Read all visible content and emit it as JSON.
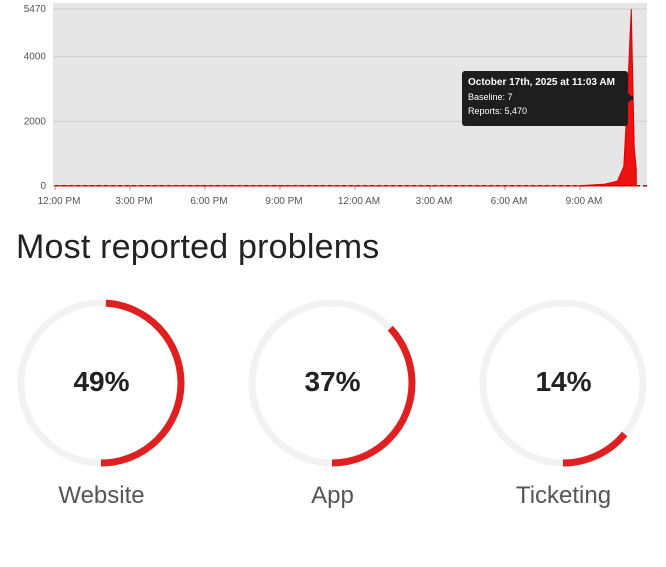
{
  "chart_data": {
    "type": "area",
    "ylim": [
      0,
      5470
    ],
    "yticks": [
      "5470",
      "4000",
      "2000",
      "0"
    ],
    "xticks": [
      "12:00 PM",
      "3:00 PM",
      "6:00 PM",
      "9:00 PM",
      "12:00 AM",
      "3:00 AM",
      "6:00 AM",
      "9:00 AM"
    ],
    "series": [
      {
        "name": "Reports",
        "x": [
          "12:00 PM",
          "3:00 PM",
          "6:00 PM",
          "9:00 PM",
          "12:00 AM",
          "3:00 AM",
          "6:00 AM",
          "9:00 AM",
          "10:00 AM",
          "10:30 AM",
          "10:45 AM",
          "10:53 AM",
          "11:00 AM",
          "11:03 AM",
          "11:05 AM",
          "11:10 AM",
          "11:15 AM"
        ],
        "values": [
          5,
          4,
          6,
          5,
          3,
          2,
          4,
          8,
          60,
          150,
          600,
          2500,
          4600,
          5470,
          4200,
          1200,
          500
        ],
        "color": "#ee1111"
      },
      {
        "name": "Baseline",
        "value": 7,
        "style": "dashed",
        "color": "#cc0000"
      }
    ],
    "tooltip": {
      "title": "October 17th, 2025 at 11:03 AM",
      "baseline": "Baseline: 7",
      "reports": "Reports: 5,470"
    },
    "grid": true,
    "background": "#e6e6e6"
  },
  "section_title": "Most reported problems",
  "problems": [
    {
      "label": "Website",
      "percent_text": "49%",
      "value": 49
    },
    {
      "label": "App",
      "percent_text": "37%",
      "value": 37
    },
    {
      "label": "Ticketing",
      "percent_text": "14%",
      "value": 14
    }
  ],
  "colors": {
    "accent": "#e02020",
    "ring_track": "#f2f2f2"
  }
}
